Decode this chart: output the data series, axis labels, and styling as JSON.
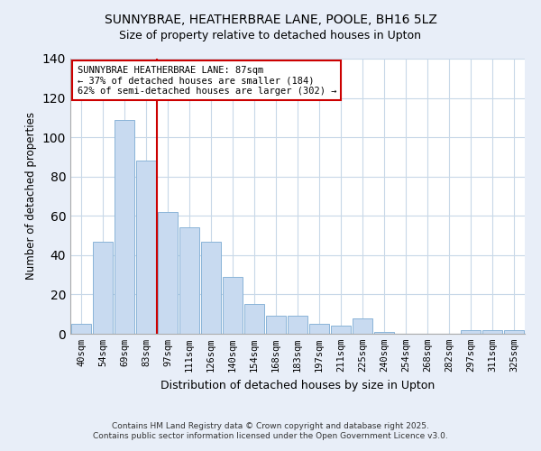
{
  "title": "SUNNYBRAE, HEATHERBRAE LANE, POOLE, BH16 5LZ",
  "subtitle": "Size of property relative to detached houses in Upton",
  "xlabel": "Distribution of detached houses by size in Upton",
  "ylabel": "Number of detached properties",
  "bar_labels": [
    "40sqm",
    "54sqm",
    "69sqm",
    "83sqm",
    "97sqm",
    "111sqm",
    "126sqm",
    "140sqm",
    "154sqm",
    "168sqm",
    "183sqm",
    "197sqm",
    "211sqm",
    "225sqm",
    "240sqm",
    "254sqm",
    "268sqm",
    "282sqm",
    "297sqm",
    "311sqm",
    "325sqm"
  ],
  "bar_values": [
    5,
    47,
    109,
    88,
    62,
    54,
    47,
    29,
    15,
    9,
    9,
    5,
    4,
    8,
    1,
    0,
    0,
    0,
    2,
    2,
    2
  ],
  "bar_color": "#c8daf0",
  "bar_edgecolor": "#8ab4d8",
  "vline_x_idx": 3,
  "vline_color": "#cc0000",
  "annotation_title": "SUNNYBRAE HEATHERBRAE LANE: 87sqm",
  "annotation_line1": "← 37% of detached houses are smaller (184)",
  "annotation_line2": "62% of semi-detached houses are larger (302) →",
  "annotation_box_color": "#cc0000",
  "ylim": [
    0,
    140
  ],
  "footnote1": "Contains HM Land Registry data © Crown copyright and database right 2025.",
  "footnote2": "Contains public sector information licensed under the Open Government Licence v3.0.",
  "bg_color": "#e8eef8",
  "plot_bg_color": "#ffffff",
  "grid_color": "#c8d8e8"
}
